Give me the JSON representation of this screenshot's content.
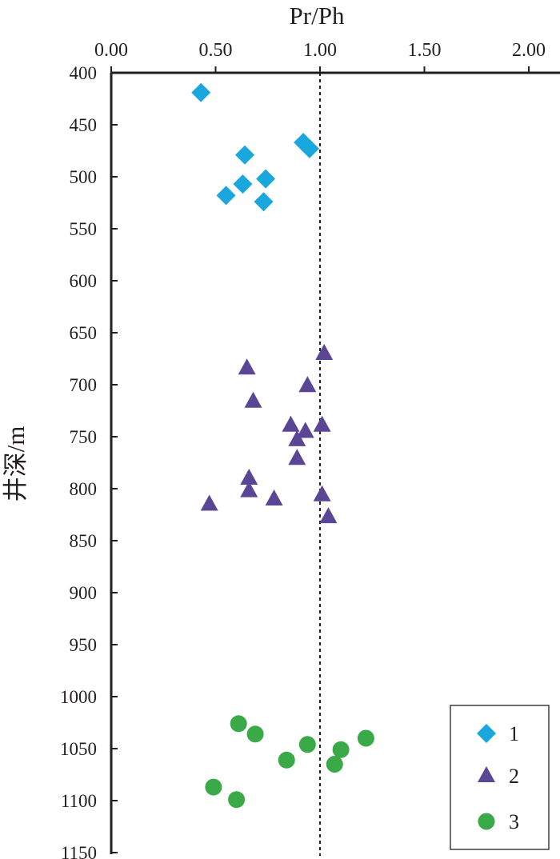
{
  "chart_data": {
    "type": "scatter",
    "title": "",
    "xlabel": "Pr/Ph",
    "ylabel": "井深/m",
    "xlim": [
      0,
      2.2
    ],
    "ylim": [
      400,
      1150
    ],
    "y_inverted": true,
    "x_axis_position": "top",
    "x_ticks": [
      0.0,
      0.5,
      1.0,
      1.5,
      2.0
    ],
    "x_tick_labels": [
      "0.00",
      "0.50",
      "1.00",
      "1.50",
      "2.00"
    ],
    "y_ticks": [
      400,
      450,
      500,
      550,
      600,
      650,
      700,
      750,
      800,
      850,
      900,
      950,
      1000,
      1050,
      1100,
      1150
    ],
    "y_tick_labels": [
      "400",
      "450",
      "500",
      "550",
      "600",
      "650",
      "700",
      "750",
      "800",
      "850",
      "900",
      "950",
      "1000",
      "1050",
      "1100",
      "1150"
    ],
    "reference_line": {
      "x": 1.0,
      "style": "dotted"
    },
    "grid": false,
    "legend_position": "bottom-right",
    "series": [
      {
        "name": "1",
        "marker": "diamond",
        "color": "#1aa7dd",
        "points": [
          {
            "x": 0.43,
            "y": 419
          },
          {
            "x": 0.64,
            "y": 479
          },
          {
            "x": 0.92,
            "y": 467
          },
          {
            "x": 0.95,
            "y": 473
          },
          {
            "x": 0.74,
            "y": 502
          },
          {
            "x": 0.63,
            "y": 507
          },
          {
            "x": 0.55,
            "y": 518
          },
          {
            "x": 0.73,
            "y": 524
          }
        ]
      },
      {
        "name": "2",
        "marker": "triangle",
        "color": "#5b4696",
        "points": [
          {
            "x": 1.02,
            "y": 670
          },
          {
            "x": 0.65,
            "y": 684
          },
          {
            "x": 0.94,
            "y": 701
          },
          {
            "x": 0.68,
            "y": 716
          },
          {
            "x": 0.86,
            "y": 739
          },
          {
            "x": 1.01,
            "y": 739
          },
          {
            "x": 0.93,
            "y": 745
          },
          {
            "x": 0.89,
            "y": 753
          },
          {
            "x": 0.89,
            "y": 771
          },
          {
            "x": 0.66,
            "y": 790
          },
          {
            "x": 0.66,
            "y": 802
          },
          {
            "x": 1.01,
            "y": 806
          },
          {
            "x": 0.78,
            "y": 810
          },
          {
            "x": 0.47,
            "y": 815
          },
          {
            "x": 1.04,
            "y": 827
          }
        ]
      },
      {
        "name": "3",
        "marker": "circle",
        "color": "#3aaa48",
        "points": [
          {
            "x": 0.61,
            "y": 1026
          },
          {
            "x": 0.69,
            "y": 1036
          },
          {
            "x": 1.22,
            "y": 1040
          },
          {
            "x": 0.94,
            "y": 1046
          },
          {
            "x": 1.1,
            "y": 1051
          },
          {
            "x": 0.84,
            "y": 1061
          },
          {
            "x": 1.07,
            "y": 1065
          },
          {
            "x": 0.49,
            "y": 1087
          },
          {
            "x": 0.6,
            "y": 1099
          }
        ]
      }
    ]
  },
  "colors": {
    "axis": "#231f20",
    "text": "#231f20"
  }
}
